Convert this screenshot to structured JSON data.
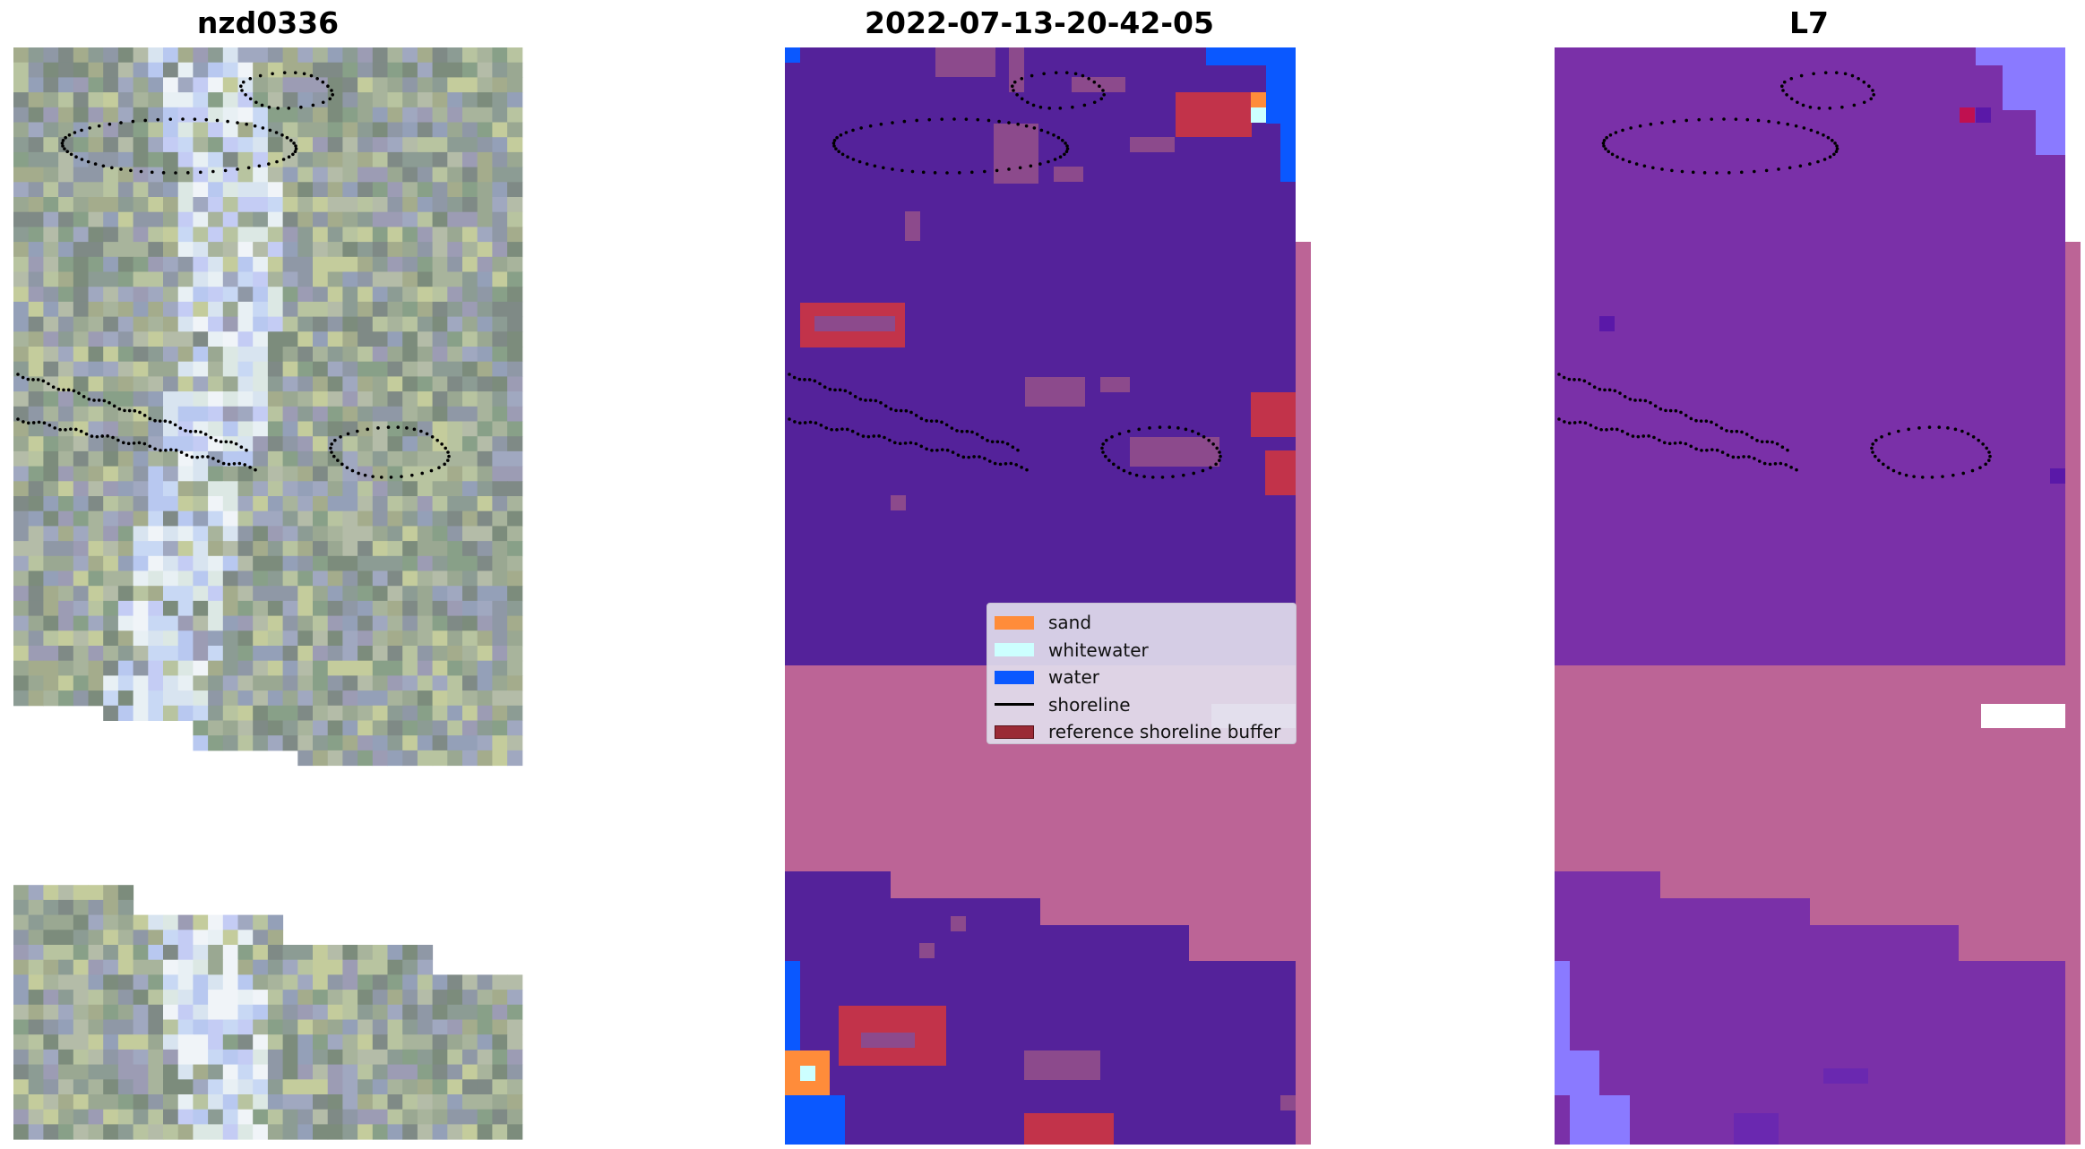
{
  "panels": {
    "left_title": "nzd0336",
    "middle_title": "2022-07-13-20-42-05",
    "right_title": "L7"
  },
  "legend": {
    "items": [
      {
        "label": "sand",
        "kind": "patch",
        "color": "#ff8c3a"
      },
      {
        "label": "whitewater",
        "kind": "patch",
        "color": "#ccffff"
      },
      {
        "label": "water",
        "kind": "patch",
        "color": "#0a58ff"
      },
      {
        "label": "shoreline",
        "kind": "line",
        "color": "#000000"
      },
      {
        "label": "reference shoreline buffer",
        "kind": "patch",
        "color": "#9a2a36"
      }
    ]
  },
  "colors": {
    "classified_background": "#54229a",
    "no_data_pink": "#bc6496",
    "buffer_red": "#c2334a",
    "buffer_mix": "#8c4a8c",
    "mndwi_purple": "#7a30a8",
    "mndwi_light": "#8a7aff",
    "water_blue": "#0a58ff",
    "sand_orange": "#ff8c3a",
    "whitewater": "#ccffff",
    "rgb_green_gray": "#9aa892",
    "rgb_light": "#e8f0f4"
  },
  "icons": {
    "legend_patch": "square-patch-icon",
    "legend_line": "line-icon"
  }
}
